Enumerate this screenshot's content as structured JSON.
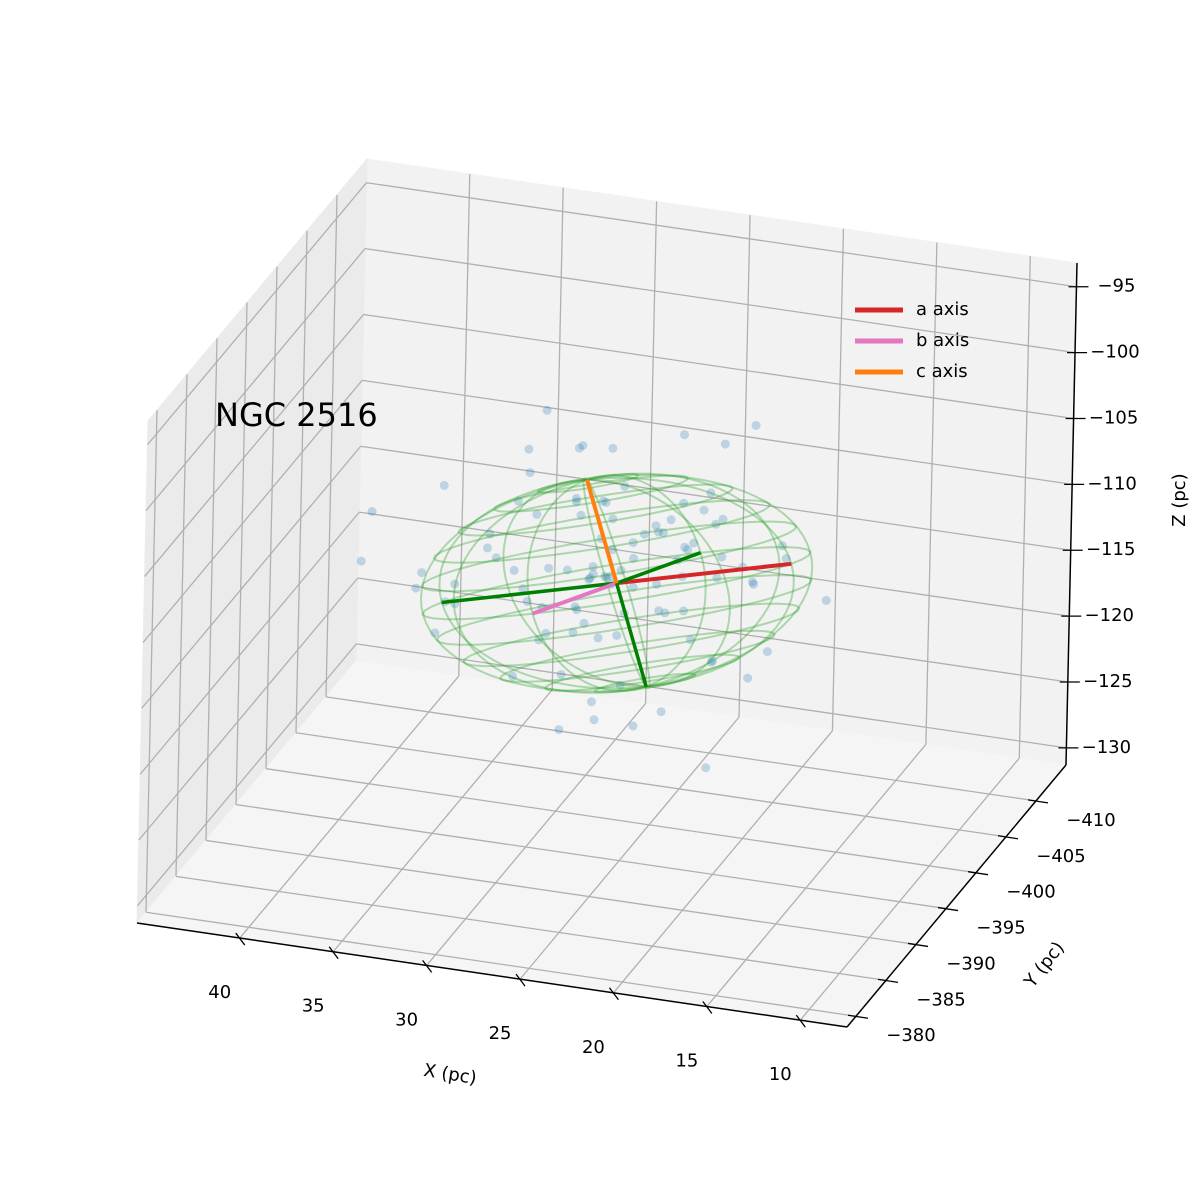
{
  "chart_data": {
    "type": "scatter3d",
    "title": "NGC 2516",
    "xlabel": "X (pc)",
    "ylabel": "Y (pc)",
    "zlabel": "Z (pc)",
    "xlim": [
      7.5,
      45.5
    ],
    "ylim": [
      -415,
      -378.5
    ],
    "zlim": [
      -131.3,
      -93.2
    ],
    "xticks": [
      10,
      15,
      20,
      25,
      30,
      35,
      40
    ],
    "yticks": [
      {
        "value": -410,
        "label": "−410"
      },
      {
        "value": -405,
        "label": "−405"
      },
      {
        "value": -400,
        "label": "−400"
      },
      {
        "value": -395,
        "label": "−395"
      },
      {
        "value": -390,
        "label": "−390"
      },
      {
        "value": -385,
        "label": "−385"
      },
      {
        "value": -380,
        "label": "−380"
      }
    ],
    "zticks": [
      {
        "value": -130,
        "label": "−130"
      },
      {
        "value": -125,
        "label": "−125"
      },
      {
        "value": -120,
        "label": "−120"
      },
      {
        "value": -115,
        "label": "−115"
      },
      {
        "value": -110,
        "label": "−110"
      },
      {
        "value": -105,
        "label": "−105"
      },
      {
        "value": -100,
        "label": "−100"
      },
      {
        "value": -95,
        "label": "−95"
      }
    ],
    "grid": true,
    "legend_position": "upper right",
    "points": {
      "color": "#1f77b4",
      "x": [
        26.1,
        24.3,
        28.7,
        22.5,
        30.2,
        19.8,
        27.4,
        25.0,
        33.1,
        21.2,
        29.5,
        23.8,
        26.9,
        31.7,
        18.4,
        24.6,
        27.8,
        35.2,
        20.7,
        28.1,
        25.5,
        22.9,
        30.8,
        26.3,
        17.6,
        29.0,
        24.1,
        32.4,
        27.2,
        21.8,
        26.6,
        23.4,
        28.9,
        36.5,
        19.3,
        25.8,
        30.1,
        22.2,
        27.0,
        24.9,
        33.8,
        20.1,
        28.4,
        26.0,
        23.1,
        31.2,
        25.3,
        38.7,
        21.5,
        27.6,
        24.4,
        29.8,
        18.9,
        26.7,
        34.6,
        22.7,
        28.2,
        25.1,
        30.5,
        16.8,
        27.9,
        23.6,
        26.4,
        32.9,
        20.4,
        28.6,
        24.8,
        35.9,
        22.0,
        29.3,
        25.7,
        19.6,
        27.3,
        31.0,
        23.3,
        26.2,
        40.2,
        21.0,
        28.0,
        24.2,
        30.7,
        25.9,
        17.9,
        29.6,
        23.0,
        27.1,
        33.5,
        20.9,
        26.8,
        24.0,
        31.5,
        22.4,
        28.5,
        14.9,
        25.4,
        37.3,
        23.7,
        29.1,
        26.5,
        21.4
      ],
      "y": [
        -396.2,
        -399.1,
        -393.5,
        -401.3,
        -395.0,
        -398.4,
        -392.1,
        -404.6,
        -397.3,
        -394.2,
        -400.8,
        -390.7,
        -397.9,
        -402.5,
        -395.6,
        -388.9,
        -399.7,
        -396.4,
        -403.2,
        -391.8,
        -398.0,
        -394.9,
        -405.3,
        -396.7,
        -392.6,
        -400.1,
        -397.5,
        -389.6,
        -402.0,
        -395.3,
        -399.4,
        -393.0,
        -407.1,
        -396.1,
        -391.2,
        -398.8,
        -394.4,
        -401.7,
        -397.0,
        -386.5,
        -399.9,
        -395.8,
        -403.6,
        -392.9,
        -397.8,
        -396.3,
        -409.2,
        -393.7,
        -400.4,
        -394.6,
        -398.6,
        -391.5,
        -402.9,
        -396.9,
        -395.1,
        -399.2,
        -387.8,
        -397.2,
        -404.0,
        -393.3,
        -396.5,
        -400.6,
        -394.0,
        -398.2,
        -390.3,
        -401.0,
        -395.7,
        -397.6,
        -392.3,
        -406.2,
        -396.0,
        -399.5,
        -393.9,
        -398.9,
        -395.4,
        -384.7,
        -400.2,
        -397.4,
        -394.7,
        -402.2,
        -396.6,
        -391.0,
        -399.0,
        -395.2,
        -403.9,
        -397.7,
        -393.2,
        -398.3,
        -390.0,
        -401.5,
        -396.8,
        -394.3,
        -400.0,
        -397.1,
        -392.8,
        -399.6,
        -395.9,
        -405.8,
        -393.8,
        -398.5
      ],
      "z": [
        -111.2,
        -108.5,
        -114.0,
        -106.3,
        -112.7,
        -109.8,
        -116.1,
        -104.2,
        -110.5,
        -113.3,
        -107.9,
        -115.4,
        -111.8,
        -102.6,
        -109.1,
        -117.2,
        -110.0,
        -105.7,
        -113.9,
        -108.0,
        -112.3,
        -119.5,
        -106.8,
        -110.9,
        -114.6,
        -103.4,
        -111.5,
        -108.9,
        -116.8,
        -107.2,
        -112.0,
        -105.1,
        -110.3,
        -113.6,
        -121.0,
        -109.4,
        -100.8,
        -112.9,
        -115.9,
        -107.6,
        -111.0,
        -104.8,
        -113.1,
        -118.3,
        -109.6,
        -106.0,
        -112.5,
        -110.7,
        -101.9,
        -114.3,
        -108.2,
        -116.4,
        -111.4,
        -105.5,
        -113.7,
        -109.0,
        -107.4,
        -122.3,
        -110.1,
        -112.8,
        -106.5,
        -115.1,
        -109.3,
        -111.7,
        -104.0,
        -113.0,
        -108.7,
        -117.7,
        -110.4,
        -107.0,
        -114.9,
        -99.6,
        -111.9,
        -108.4,
        -112.2,
        -106.7,
        -110.8,
        -116.6,
        -109.7,
        -113.5,
        -103.9,
        -111.3,
        -108.1,
        -115.6,
        -110.2,
        -105.9,
        -112.6,
        -109.2,
        -119.0,
        -107.5,
        -111.6,
        -104.5,
        -113.4,
        -110.6,
        -108.6,
        -114.5,
        -106.1,
        -112.1,
        -109.5,
        -117.4
      ]
    },
    "ellipsoid": {
      "center": [
        26,
        -396.75,
        -111.4
      ],
      "color": "#2ca02c",
      "negative_color": "#008000",
      "axes": [
        {
          "name": "a axis",
          "color": "#d62728",
          "vector": [
            -9.3,
            0,
            3.4
          ]
        },
        {
          "name": "b axis",
          "color": "#e377c2",
          "vector": [
            3.2,
            4,
            -0.8
          ]
        },
        {
          "name": "c axis",
          "color": "#ff7f0e",
          "vector": [
            1.7,
            0,
            7.5
          ]
        }
      ]
    }
  }
}
